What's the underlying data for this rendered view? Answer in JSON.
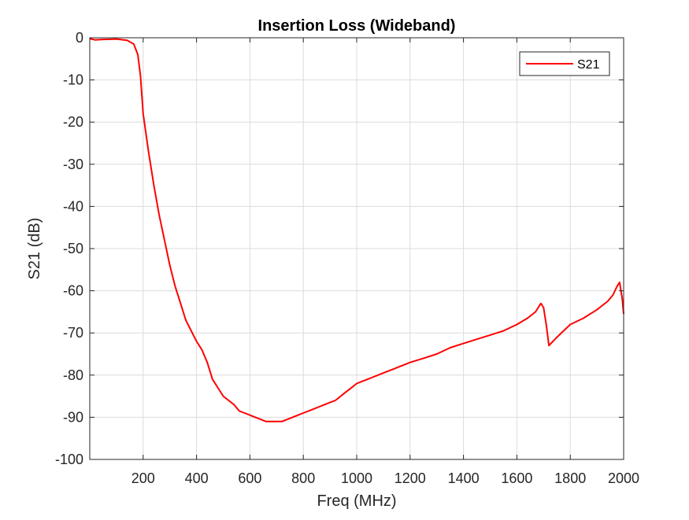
{
  "chart_data": {
    "type": "line",
    "title": "Insertion Loss (Wideband)",
    "xlabel": "Freq (MHz)",
    "ylabel": "S21 (dB)",
    "xlim": [
      0,
      2000
    ],
    "ylim": [
      -100,
      0
    ],
    "xticks": [
      200,
      400,
      600,
      800,
      1000,
      1200,
      1400,
      1600,
      1800,
      2000
    ],
    "yticks": [
      0,
      -10,
      -20,
      -30,
      -40,
      -50,
      -60,
      -70,
      -80,
      -90,
      -100
    ],
    "grid": true,
    "legend_position": "top-right",
    "series": [
      {
        "name": "S21",
        "color": "#ff0000",
        "x": [
          0,
          20,
          50,
          100,
          140,
          165,
          180,
          190,
          200,
          220,
          240,
          260,
          280,
          300,
          320,
          340,
          360,
          380,
          400,
          420,
          440,
          460,
          480,
          500,
          520,
          540,
          560,
          580,
          600,
          620,
          640,
          660,
          680,
          700,
          720,
          740,
          760,
          780,
          800,
          820,
          840,
          860,
          880,
          900,
          920,
          940,
          960,
          980,
          1000,
          1020,
          1040,
          1060,
          1080,
          1100,
          1120,
          1140,
          1160,
          1180,
          1200,
          1250,
          1300,
          1350,
          1400,
          1450,
          1500,
          1550,
          1600,
          1640,
          1670,
          1690,
          1700,
          1710,
          1720,
          1750,
          1800,
          1850,
          1900,
          1940,
          1960,
          1975,
          1985,
          1995,
          2000
        ],
        "y": [
          -0.2,
          -0.5,
          -0.4,
          -0.3,
          -0.6,
          -1.5,
          -4,
          -9,
          -18,
          -27,
          -35,
          -42,
          -48,
          -54,
          -59,
          -63,
          -67,
          -69.5,
          -72,
          -74,
          -77,
          -81,
          -83,
          -85,
          -86,
          -87,
          -88.5,
          -89,
          -89.5,
          -90,
          -90.5,
          -91,
          -91,
          -91,
          -91,
          -90.5,
          -90,
          -89.5,
          -89,
          -88.5,
          -88,
          -87.5,
          -87,
          -86.5,
          -86,
          -85,
          -84,
          -83,
          -82,
          -81.5,
          -81,
          -80.5,
          -80,
          -79.5,
          -79,
          -78.5,
          -78,
          -77.5,
          -77,
          -76,
          -75,
          -73.5,
          -72.5,
          -71.5,
          -70.5,
          -69.5,
          -68,
          -66.5,
          -65,
          -63,
          -64,
          -68,
          -73,
          -71,
          -68,
          -66.5,
          -64.5,
          -62.5,
          -61,
          -59,
          -58,
          -62,
          -65.5
        ]
      }
    ]
  }
}
